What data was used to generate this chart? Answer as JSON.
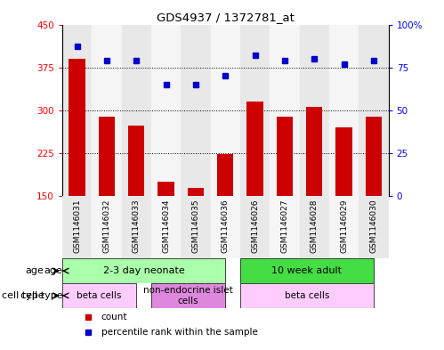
{
  "title": "GDS4937 / 1372781_at",
  "samples": [
    "GSM1146031",
    "GSM1146032",
    "GSM1146033",
    "GSM1146034",
    "GSM1146035",
    "GSM1146036",
    "GSM1146026",
    "GSM1146027",
    "GSM1146028",
    "GSM1146029",
    "GSM1146030"
  ],
  "counts": [
    390,
    288,
    272,
    175,
    163,
    222,
    315,
    288,
    305,
    270,
    288
  ],
  "percentiles": [
    87,
    79,
    79,
    65,
    65,
    70,
    82,
    79,
    80,
    77,
    79
  ],
  "ylim_left": [
    150,
    450
  ],
  "ylim_right": [
    0,
    100
  ],
  "yticks_left": [
    150,
    225,
    300,
    375,
    450
  ],
  "yticks_right": [
    0,
    25,
    50,
    75,
    100
  ],
  "bar_color": "#cc0000",
  "dot_color": "#0000cc",
  "age_groups": [
    {
      "label": "2-3 day neonate",
      "start": 0,
      "end": 5,
      "color": "#aaffaa"
    },
    {
      "label": "10 week adult",
      "start": 6,
      "end": 10,
      "color": "#44dd44"
    }
  ],
  "cell_type_groups": [
    {
      "label": "beta cells",
      "start": 0,
      "end": 2,
      "color": "#ffccff"
    },
    {
      "label": "non-endocrine islet\ncells",
      "start": 3,
      "end": 5,
      "color": "#dd88dd"
    },
    {
      "label": "beta cells",
      "start": 6,
      "end": 10,
      "color": "#ffccff"
    }
  ],
  "age_label": "age",
  "cell_type_label": "cell type",
  "legend_count_label": "count",
  "legend_percentile_label": "percentile rank within the sample"
}
